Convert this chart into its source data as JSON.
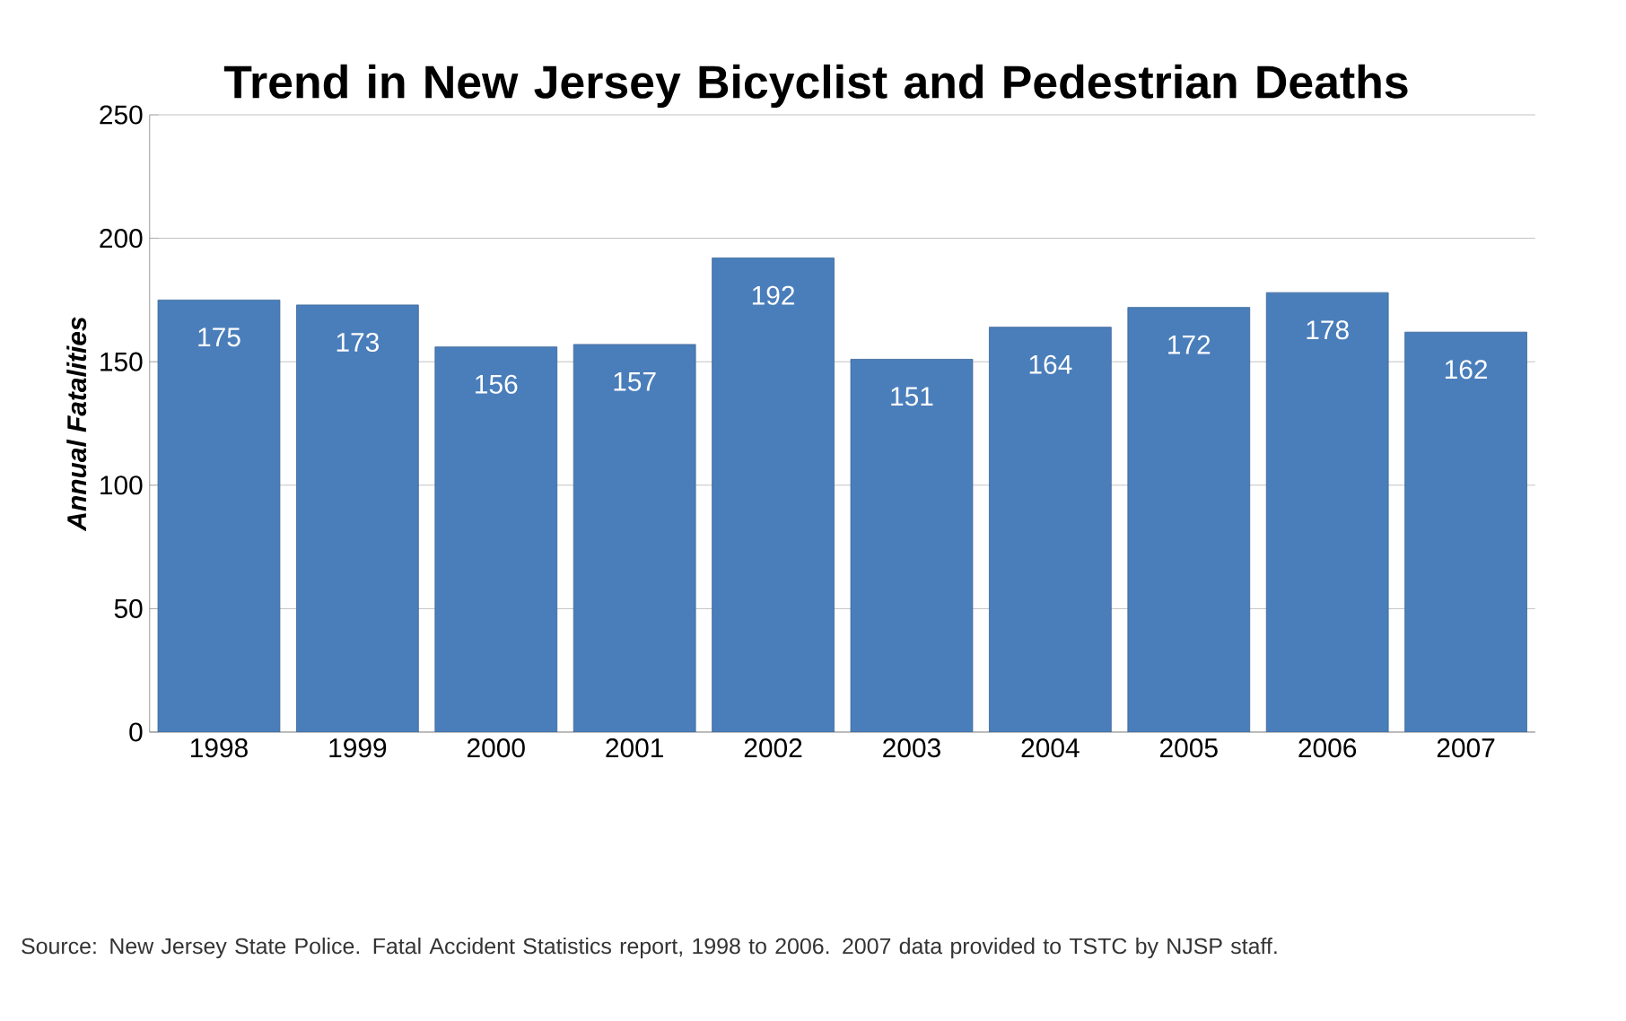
{
  "chart_data": {
    "type": "bar",
    "title": "Trend in New Jersey Bicyclist and Pedestrian Deaths",
    "ylabel": "Annual Fatalities",
    "categories": [
      "1998",
      "1999",
      "2000",
      "2001",
      "2002",
      "2003",
      "2004",
      "2005",
      "2006",
      "2007"
    ],
    "values": [
      175,
      173,
      156,
      157,
      192,
      151,
      164,
      172,
      178,
      162
    ],
    "color": "#4a7ebb",
    "ylim": [
      0,
      250
    ],
    "yticks": [
      0,
      50,
      100,
      150,
      200,
      250
    ],
    "grid": "y",
    "data_labels": true,
    "annotations": [
      "Source: New Jersey State Police. Fatal Accident Statistics report, 1998 to 2006.  2007 data provided to TSTC by NJSP staff."
    ]
  }
}
